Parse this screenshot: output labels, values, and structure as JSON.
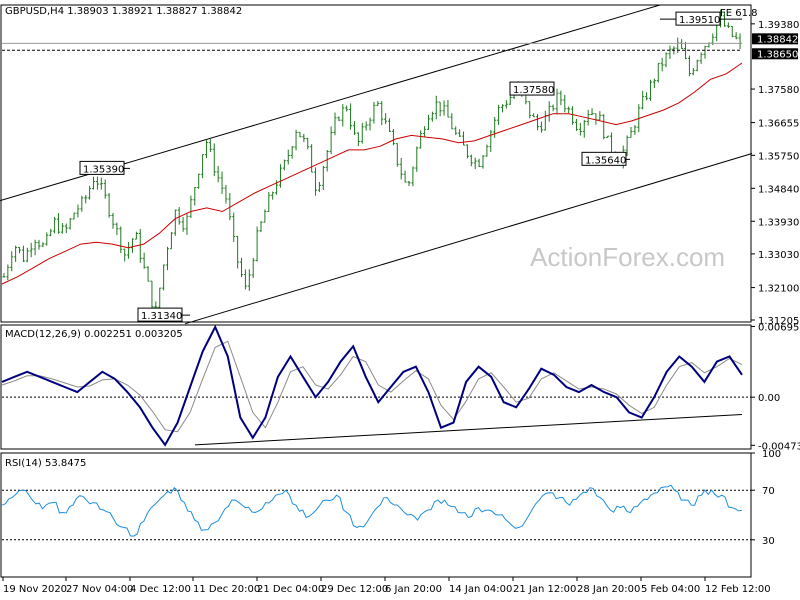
{
  "chart_data": [
    {
      "type": "candlestick",
      "title": "GBPUSD,H4 1.38903 1.38921 1.38827 1.38842",
      "watermark": "ActionForex.com",
      "y_ticks": [
        "1.39380",
        "1.38842",
        "1.38650",
        "1.37580",
        "1.36655",
        "1.35750",
        "1.34840",
        "1.33930",
        "1.33030",
        "1.32100",
        "1.31205"
      ],
      "ylim": [
        1.3115,
        1.399
      ],
      "levels": [
        {
          "label": "1.35390",
          "value": 1.3539
        },
        {
          "label": "1.31340",
          "value": 1.3134
        },
        {
          "label": "1.37580",
          "value": 1.3758
        },
        {
          "label": "1.35640",
          "value": 1.3564
        },
        {
          "label": "1.39510",
          "value": 1.3951
        }
      ],
      "fib_label": "FE 61.8",
      "fib_level": 1.3951,
      "current_price": 1.38842,
      "dashed_level": 1.3865,
      "path": [
        1.324,
        1.333,
        1.329,
        1.335,
        1.332,
        1.339,
        1.336,
        1.342,
        1.345,
        1.352,
        1.346,
        1.338,
        1.33,
        1.336,
        1.325,
        1.3134,
        1.33,
        1.342,
        1.338,
        1.35,
        1.362,
        1.353,
        1.346,
        1.33,
        1.32,
        1.334,
        1.343,
        1.35,
        1.356,
        1.365,
        1.36,
        1.348,
        1.358,
        1.368,
        1.371,
        1.36,
        1.367,
        1.372,
        1.365,
        1.356,
        1.348,
        1.36,
        1.369,
        1.372,
        1.368,
        1.362,
        1.358,
        1.355,
        1.362,
        1.37,
        1.373,
        1.3758,
        1.37,
        1.365,
        1.369,
        1.374,
        1.37,
        1.365,
        1.37,
        1.368,
        1.36,
        1.3564,
        1.362,
        1.37,
        1.376,
        1.382,
        1.386,
        1.388,
        1.38,
        1.386,
        1.39,
        1.3951,
        1.391,
        1.38842
      ],
      "ma_path": [
        1.322,
        1.324,
        1.3265,
        1.329,
        1.331,
        1.333,
        1.3335,
        1.333,
        1.332,
        1.333,
        1.336,
        1.34,
        1.342,
        1.343,
        1.342,
        1.3445,
        1.347,
        1.349,
        1.351,
        1.353,
        1.355,
        1.357,
        1.359,
        1.359,
        1.36,
        1.362,
        1.363,
        1.3625,
        1.362,
        1.361,
        1.3615,
        1.363,
        1.3645,
        1.366,
        1.3675,
        1.369,
        1.369,
        1.368,
        1.367,
        1.366,
        1.367,
        1.3685,
        1.37,
        1.372,
        1.375,
        1.3785,
        1.38,
        1.383
      ],
      "channel": {
        "upper": [
          [
            0,
            1.345
          ],
          [
            660,
            1.399
          ]
        ],
        "lower": [
          [
            185,
            1.311
          ],
          [
            752,
            1.358
          ]
        ]
      }
    },
    {
      "type": "line",
      "title": "MACD(12,26,9) 0.002251 0.003205",
      "y_ticks": [
        "0.006956",
        "0.00",
        "-0.004736"
      ],
      "ylim": [
        -0.0051,
        0.0071
      ],
      "macd": [
        0.0015,
        0.002,
        0.0025,
        0.002,
        0.0015,
        0.001,
        0.0005,
        0.0015,
        0.0025,
        0.0018,
        0.0005,
        -0.001,
        -0.003,
        -0.0047,
        -0.0025,
        0.001,
        0.0045,
        0.0069,
        0.004,
        -0.002,
        -0.004,
        -0.002,
        0.002,
        0.004,
        0.002,
        0.0,
        0.0015,
        0.0035,
        0.005,
        0.002,
        -0.0005,
        0.001,
        0.0025,
        0.003,
        0.0005,
        -0.003,
        -0.0025,
        0.0015,
        0.003,
        0.002,
        -0.0005,
        -0.001,
        0.0008,
        0.0028,
        0.0022,
        0.001,
        0.0005,
        0.0012,
        0.0005,
        0.0,
        -0.0015,
        -0.002,
        0.0,
        0.0025,
        0.004,
        0.003,
        0.0015,
        0.0035,
        0.004,
        0.0022
      ],
      "signal": [
        0.0012,
        0.0016,
        0.0021,
        0.0021,
        0.0018,
        0.0014,
        0.001,
        0.0011,
        0.0017,
        0.0018,
        0.0012,
        0.0002,
        -0.0014,
        -0.0032,
        -0.0034,
        -0.0015,
        0.0018,
        0.0049,
        0.0055,
        0.002,
        -0.0015,
        -0.003,
        -0.0005,
        0.0025,
        0.003,
        0.0012,
        0.0008,
        0.0022,
        0.004,
        0.0035,
        0.0012,
        0.0005,
        0.0016,
        0.0026,
        0.0018,
        -0.0008,
        -0.0022,
        -0.0004,
        0.0018,
        0.0024,
        0.001,
        -0.0005,
        -0.0001,
        0.0018,
        0.0024,
        0.0016,
        0.0008,
        0.001,
        0.0008,
        0.0003,
        -0.0008,
        -0.0016,
        -0.001,
        0.0012,
        0.003,
        0.0034,
        0.0024,
        0.003,
        0.0038,
        0.0032
      ],
      "trendline": [
        [
          195,
          -0.0047
        ],
        [
          742,
          -0.0017
        ]
      ]
    },
    {
      "type": "line",
      "title": "RSI(14) 53.8475",
      "y_ticks": [
        "100",
        "70",
        "30",
        "0"
      ],
      "ylim": [
        0,
        100
      ],
      "levels": [
        70,
        30
      ],
      "series": [
        58,
        64,
        70,
        62,
        55,
        60,
        52,
        58,
        65,
        60,
        54,
        47,
        40,
        33,
        45,
        58,
        66,
        72,
        60,
        46,
        38,
        44,
        55,
        62,
        56,
        52,
        60,
        66,
        70,
        58,
        48,
        54,
        62,
        66,
        52,
        40,
        44,
        56,
        64,
        58,
        50,
        46,
        54,
        62,
        58,
        52,
        48,
        56,
        54,
        50,
        44,
        40,
        50,
        62,
        68,
        64,
        58,
        66,
        72,
        64,
        54,
        56,
        52,
        60,
        66,
        72,
        74,
        62,
        58,
        66,
        70,
        66,
        56,
        53.8475
      ]
    }
  ],
  "x_ticks": [
    "19 Nov 2020",
    "27 Nov 04:00",
    "4 Dec 12:00",
    "11 Dec 20:00",
    "21 Dec 04:00",
    "29 Dec 12:00",
    "6 Jan 20:00",
    "14 Jan 04:00",
    "21 Jan 12:00",
    "28 Jan 20:00",
    "5 Feb 04:00",
    "12 Feb 12:00"
  ],
  "colors": {
    "candles": "#1f7a1f",
    "ma": "#cc0000",
    "macd": "#00007f",
    "signal": "#8c8c8c",
    "rsi": "#1e8fdc",
    "grid": "#d0d0d0",
    "axis": "#000000"
  }
}
